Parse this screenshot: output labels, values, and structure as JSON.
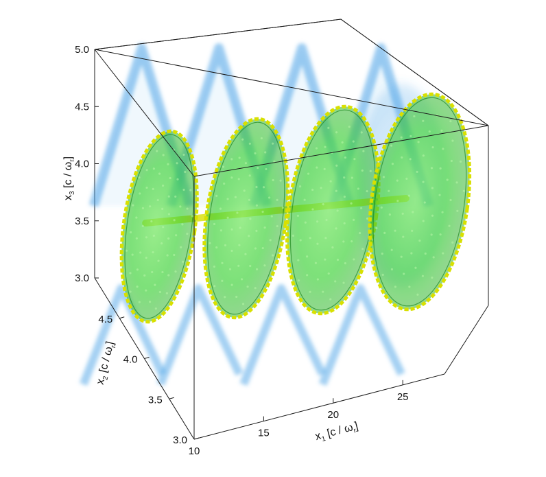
{
  "chart_data": {
    "type": "scatter",
    "subtype": "3d-volume-render",
    "x1_axis": {
      "var": "x",
      "sub": "1",
      "unit_open": " [c / ω",
      "unit_sub": "r",
      "unit_close": "]",
      "ticks": [
        "10",
        "15",
        "20",
        "25"
      ],
      "range": [
        10,
        28
      ]
    },
    "x2_axis": {
      "var": "x",
      "sub": "2",
      "unit_open": " [c / ω",
      "unit_sub": "r",
      "unit_close": "]",
      "ticks": [
        "3.0",
        "3.5",
        "4.0",
        "4.5"
      ],
      "range": [
        3.0,
        5.0
      ]
    },
    "x3_axis": {
      "var": "x",
      "sub": "3",
      "unit_open": " [c / ω",
      "unit_sub": "r",
      "unit_close": "]",
      "ticks": [
        "3.0",
        "3.5",
        "4.0",
        "4.5",
        "5.0"
      ],
      "range": [
        3.0,
        5.0
      ]
    },
    "helix_turns": [
      {
        "x1": 11.5
      },
      {
        "x1": 16.0
      },
      {
        "x1": 20.5
      },
      {
        "x1": 25.0
      }
    ],
    "projection_peaks_x1": [
      11.3,
      15.3,
      19.6,
      23.7
    ],
    "colors": {
      "isosurface": "#3fd23a",
      "isosurface_edge": "#d8e000",
      "projection": "#4aa3e8",
      "frame": "#1a1a1a"
    }
  }
}
